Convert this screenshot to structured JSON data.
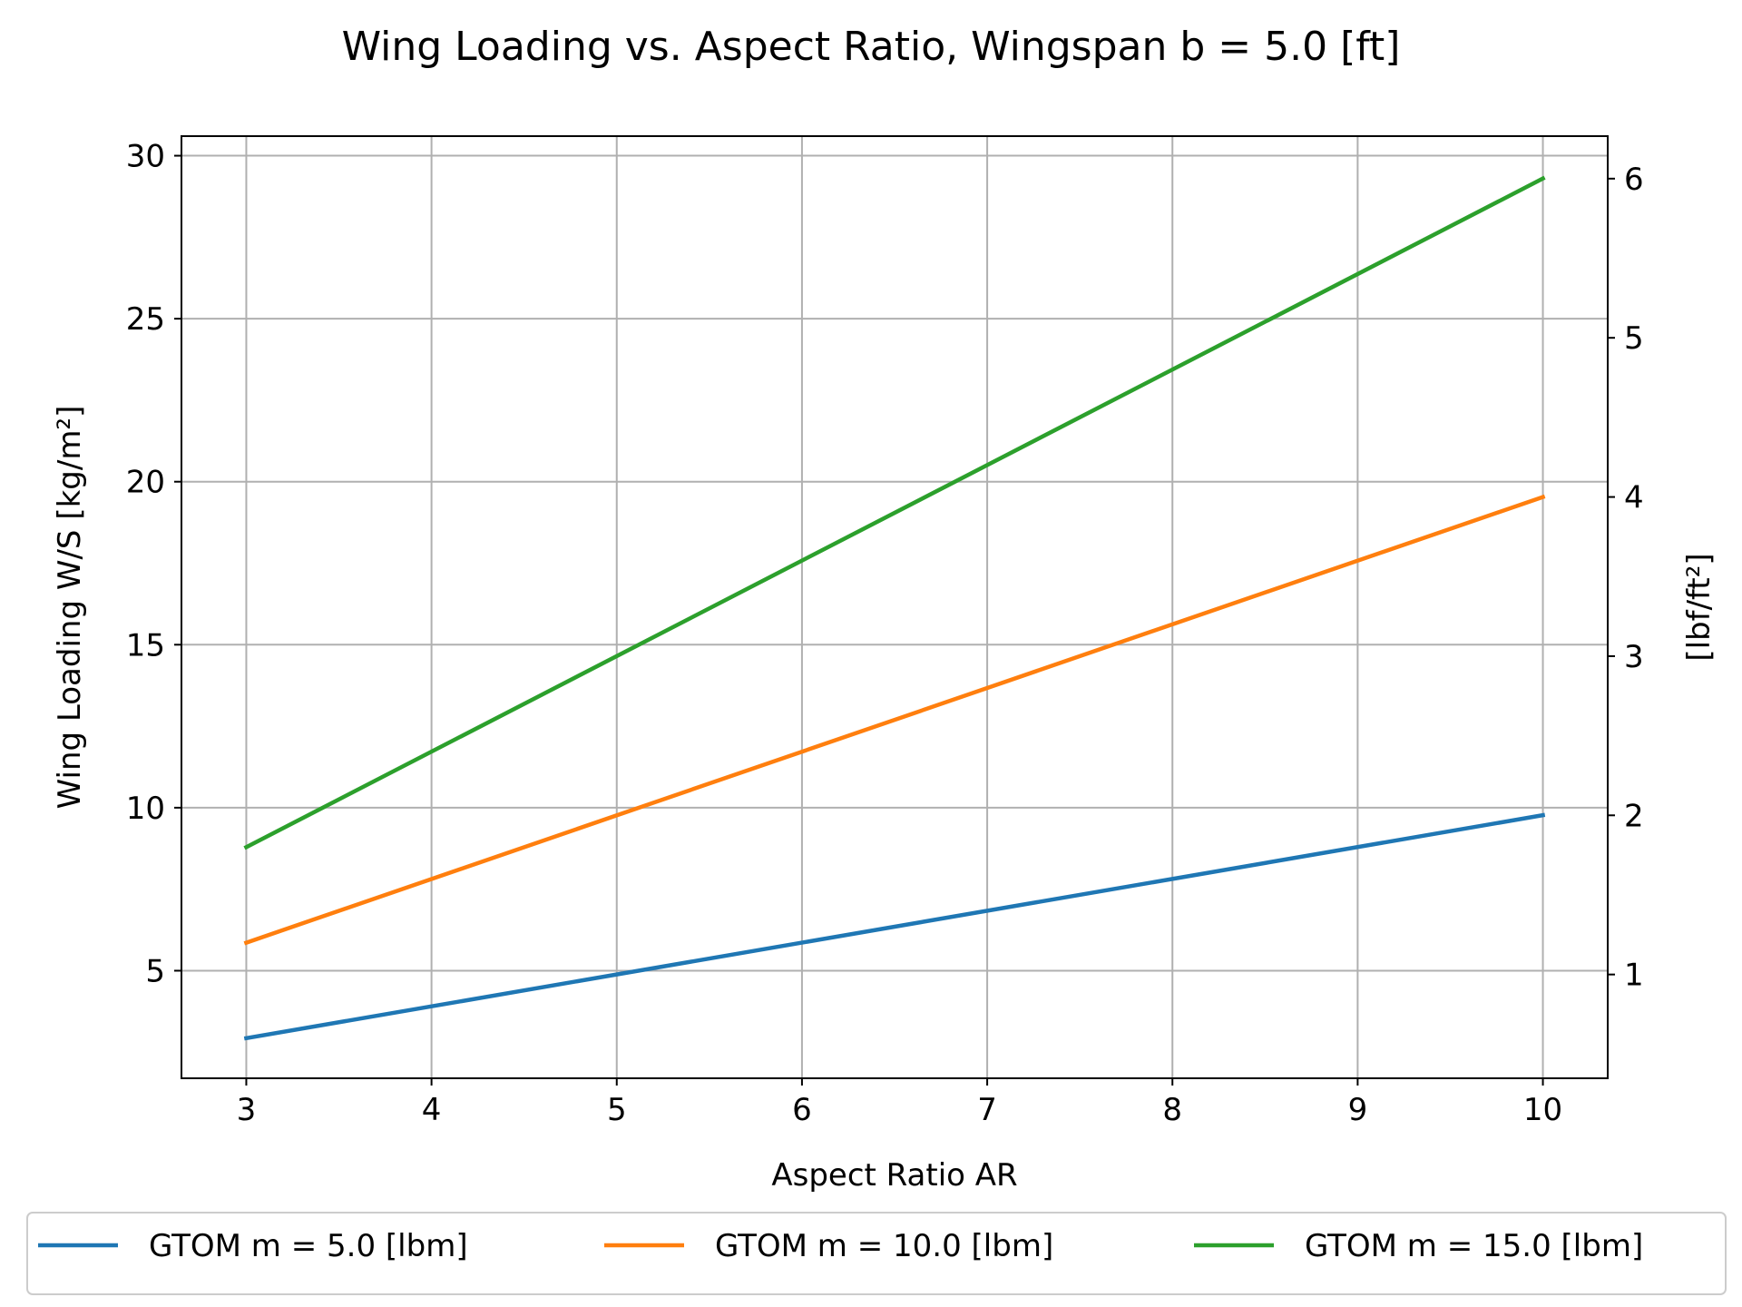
{
  "chart_data": {
    "type": "line",
    "title": "Wing Loading vs. Aspect Ratio, Wingspan b = 5.0 [ft]",
    "xlabel": "Aspect Ratio AR",
    "ylabel": "Wing Loading W/S [kg/m²]",
    "ylabel_right": "[lbf/ft²]",
    "xlim": [
      2.65,
      10.35
    ],
    "ylim": [
      1.7,
      30.6
    ],
    "ylim_right": [
      0.348,
      6.267
    ],
    "x_ticks": [
      3,
      4,
      5,
      6,
      7,
      8,
      9,
      10
    ],
    "y_ticks": [
      5,
      10,
      15,
      20,
      25,
      30
    ],
    "y_right_ticks": [
      1,
      2,
      3,
      4,
      5,
      6
    ],
    "grid": true,
    "legend_position": "bottom-center",
    "series": [
      {
        "name": "GTOM m = 5.0 [lbm]",
        "color": "#1f77b4",
        "x": [
          3,
          10
        ],
        "y": [
          2.93,
          9.77
        ]
      },
      {
        "name": "GTOM m = 10.0 [lbm]",
        "color": "#ff7f0e",
        "x": [
          3,
          10
        ],
        "y": [
          5.86,
          19.53
        ]
      },
      {
        "name": "GTOM m = 15.0 [lbm]",
        "color": "#2ca02c",
        "x": [
          3,
          10
        ],
        "y": [
          8.79,
          29.3
        ]
      }
    ]
  }
}
